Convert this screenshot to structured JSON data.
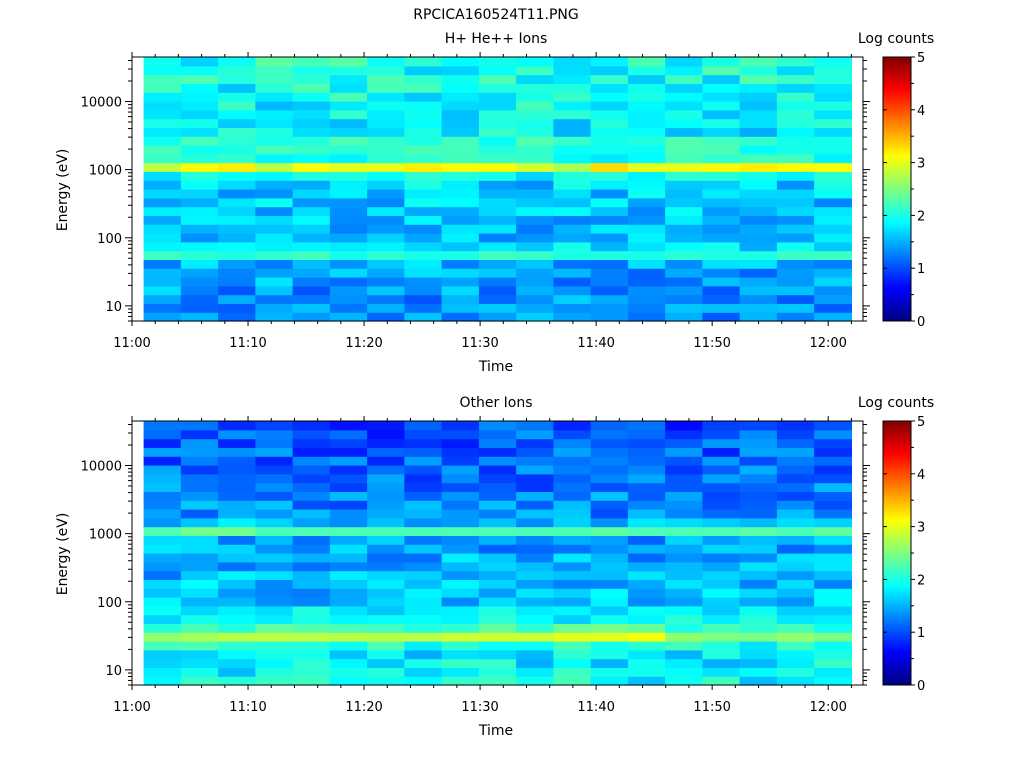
{
  "figure_title": "RPCICA160524T11.PNG",
  "colors": {
    "colormap": [
      "#00007f",
      "#0000ff",
      "#007fff",
      "#00ffff",
      "#7fff7f",
      "#ffff00",
      "#ff7f00",
      "#ff0000",
      "#7f0000"
    ],
    "background": "#ffffff",
    "axes": "#000000"
  },
  "chart_data": [
    {
      "type": "heatmap",
      "title": "H+ He++ Ions",
      "xlabel": "Time",
      "ylabel": "Energy (eV)",
      "colorbar_label": "Log counts",
      "x_tick_labels": [
        "11:00",
        "11:10",
        "11:20",
        "11:30",
        "11:40",
        "11:50",
        "12:00"
      ],
      "y_tick_labels": [
        "10",
        "100",
        "1000",
        "10000"
      ],
      "colorbar_tick_labels": [
        "0",
        "1",
        "2",
        "3",
        "4",
        "5"
      ],
      "x_range": [
        "11:00",
        "12:03"
      ],
      "data_x_range": [
        "11:01",
        "12:02"
      ],
      "y_range": [
        6,
        45000
      ],
      "y_scale": "log",
      "c_range": [
        0,
        5
      ],
      "n_time_bins": 19,
      "n_energy_bins": 30,
      "background_log_counts": {
        "low_energy": 1.3,
        "high_energy": 2.0,
        "noise_amplitude": 0.35
      },
      "bands": [
        {
          "energy_eV": 1100,
          "width_decades": 0.07,
          "log_counts": [
            2.8,
            3.1,
            3.2,
            2.8,
            3.1,
            3.0,
            3.0,
            3.2,
            3.1,
            3.1,
            2.9,
            2.7,
            3.3,
            3.0,
            3.0,
            3.1,
            3.2,
            3.1,
            3.1
          ]
        },
        {
          "energy_eV": 2300,
          "width_decades": 0.05,
          "log_counts": [
            2.5,
            2.6,
            2.5,
            2.5,
            2.5,
            2.5,
            2.5,
            2.5,
            2.5,
            2.5,
            2.5,
            2.4,
            2.5,
            2.5,
            2.5,
            2.5,
            2.5,
            2.5,
            2.5
          ]
        },
        {
          "energy_eV": 62,
          "width_decades": 0.05,
          "log_counts": [
            2.4,
            2.4,
            2.4,
            2.4,
            2.5,
            2.4,
            2.4,
            2.4,
            2.4,
            2.5,
            2.4,
            2.4,
            2.4,
            2.4,
            2.4,
            2.4,
            2.4,
            2.4,
            2.4
          ]
        }
      ]
    },
    {
      "type": "heatmap",
      "title": "Other Ions",
      "xlabel": "Time",
      "ylabel": "Energy (eV)",
      "colorbar_label": "Log counts",
      "x_tick_labels": [
        "11:00",
        "11:10",
        "11:20",
        "11:30",
        "11:40",
        "11:50",
        "12:00"
      ],
      "y_tick_labels": [
        "10",
        "100",
        "1000",
        "10000"
      ],
      "colorbar_tick_labels": [
        "0",
        "1",
        "2",
        "3",
        "4",
        "5"
      ],
      "x_range": [
        "11:00",
        "12:03"
      ],
      "data_x_range": [
        "11:01",
        "12:02"
      ],
      "y_range": [
        6,
        45000
      ],
      "y_scale": "log",
      "c_range": [
        0,
        5
      ],
      "n_time_bins": 19,
      "n_energy_bins": 30,
      "background_log_counts": {
        "low_energy": 1.9,
        "high_energy": 1.0,
        "noise_amplitude": 0.35
      },
      "bands": [
        {
          "energy_eV": 1150,
          "width_decades": 0.06,
          "log_counts": [
            2.3,
            2.5,
            2.5,
            2.3,
            2.3,
            2.3,
            2.3,
            2.3,
            2.3,
            2.3,
            2.3,
            2.3,
            2.4,
            2.3,
            2.3,
            2.3,
            2.4,
            2.3,
            2.4
          ]
        },
        {
          "energy_eV": 32,
          "width_decades": 0.09,
          "log_counts": [
            2.6,
            2.7,
            2.8,
            2.8,
            2.8,
            2.8,
            2.8,
            2.8,
            2.9,
            2.9,
            2.9,
            3.0,
            3.0,
            3.1,
            2.6,
            2.5,
            2.5,
            2.6,
            2.5
          ]
        },
        {
          "energy_eV": 65,
          "width_decades": 0.04,
          "log_counts": [
            2.3,
            2.3,
            2.3,
            2.3,
            2.3,
            2.3,
            2.3,
            2.3,
            2.3,
            2.3,
            2.3,
            2.3,
            2.3,
            2.3,
            2.3,
            2.2,
            2.2,
            2.2,
            2.2
          ]
        }
      ]
    }
  ]
}
